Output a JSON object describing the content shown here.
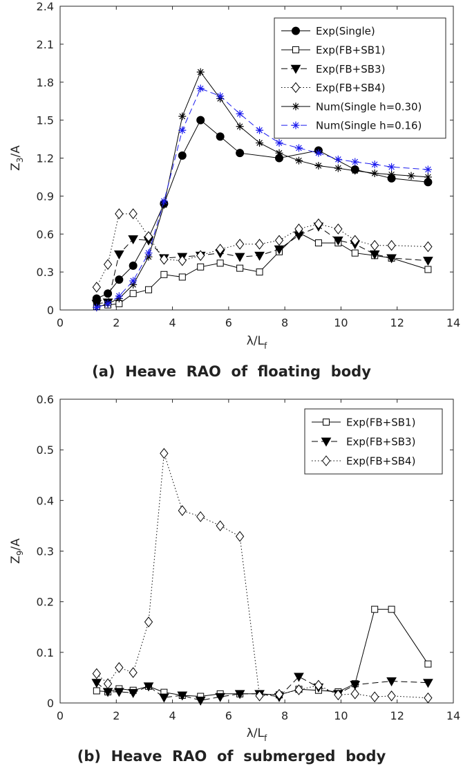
{
  "chart_data": [
    {
      "type": "line",
      "caption": "(a)  Heave  RAO  of  floating  body",
      "xlabel": "λ/L_f",
      "ylabel": "Z_3/A",
      "xlim": [
        0,
        14
      ],
      "ylim": [
        0,
        2.4
      ],
      "xticks": [
        "0",
        "2",
        "4",
        "6",
        "8",
        "10",
        "12",
        "14"
      ],
      "yticks": [
        "0",
        "0.3",
        "0.6",
        "0.9",
        "1.2",
        "1.5",
        "1.8",
        "2.1",
        "2.4"
      ],
      "grid": false,
      "legend_position": "top-right",
      "series": [
        {
          "name": "Exp(Single)",
          "color": "#000000",
          "marker": "filled-circle",
          "dash": "solid",
          "x": [
            1.3,
            1.7,
            2.1,
            2.6,
            3.15,
            3.7,
            4.35,
            5.0,
            5.7,
            6.4,
            7.8,
            9.2,
            10.5,
            11.8,
            13.1
          ],
          "y": [
            0.09,
            0.13,
            0.24,
            0.35,
            0.57,
            0.84,
            1.22,
            1.5,
            1.37,
            1.24,
            1.2,
            1.26,
            1.11,
            1.04,
            1.01
          ]
        },
        {
          "name": "Exp(FB+SB1)",
          "color": "#000000",
          "marker": "open-square",
          "dash": "solid",
          "x": [
            1.3,
            1.7,
            2.1,
            2.6,
            3.15,
            3.7,
            4.35,
            5.0,
            5.7,
            6.4,
            7.1,
            7.8,
            8.5,
            9.2,
            9.9,
            10.5,
            11.2,
            11.8,
            13.1
          ],
          "y": [
            0.03,
            0.04,
            0.05,
            0.13,
            0.16,
            0.28,
            0.26,
            0.34,
            0.37,
            0.33,
            0.3,
            0.46,
            0.61,
            0.53,
            0.53,
            0.45,
            0.43,
            0.41,
            0.32
          ]
        },
        {
          "name": "Exp(FB+SB3)",
          "color": "#000000",
          "marker": "filled-triangle-down",
          "dash": "longdash",
          "x": [
            1.3,
            1.7,
            2.1,
            2.6,
            3.15,
            3.7,
            4.35,
            5.0,
            5.7,
            6.4,
            7.1,
            7.8,
            8.5,
            9.2,
            9.9,
            10.5,
            11.2,
            11.8,
            13.1
          ],
          "y": [
            0.05,
            0.06,
            0.44,
            0.56,
            0.55,
            0.41,
            0.42,
            0.43,
            0.45,
            0.42,
            0.43,
            0.48,
            0.59,
            0.66,
            0.55,
            0.52,
            0.44,
            0.41,
            0.39
          ]
        },
        {
          "name": "Exp(FB+SB4)",
          "color": "#000000",
          "marker": "open-diamond",
          "dash": "dotted",
          "x": [
            1.3,
            1.7,
            2.1,
            2.6,
            3.15,
            3.7,
            4.35,
            5.0,
            5.7,
            6.4,
            7.1,
            7.8,
            8.5,
            9.2,
            9.9,
            10.5,
            11.2,
            11.8,
            13.1
          ],
          "y": [
            0.18,
            0.36,
            0.76,
            0.76,
            0.58,
            0.4,
            0.39,
            0.43,
            0.48,
            0.52,
            0.52,
            0.55,
            0.64,
            0.68,
            0.64,
            0.55,
            0.51,
            0.51,
            0.5
          ]
        },
        {
          "name": "Num(Single h=0.30)",
          "color": "#000000",
          "marker": "asterisk",
          "dash": "solid",
          "x": [
            1.3,
            1.7,
            2.1,
            2.6,
            3.15,
            3.7,
            4.35,
            5.0,
            5.7,
            6.4,
            7.1,
            7.8,
            8.5,
            9.2,
            9.9,
            10.5,
            11.2,
            11.8,
            12.5,
            13.1
          ],
          "y": [
            0.02,
            0.05,
            0.09,
            0.2,
            0.42,
            0.83,
            1.53,
            1.88,
            1.67,
            1.45,
            1.32,
            1.24,
            1.18,
            1.14,
            1.12,
            1.1,
            1.08,
            1.07,
            1.06,
            1.05
          ]
        },
        {
          "name": "Num(Single h=0.16)",
          "color": "#1a1aee",
          "marker": "asterisk",
          "dash": "longdash",
          "x": [
            1.3,
            1.7,
            2.1,
            2.6,
            3.15,
            3.7,
            4.35,
            5.0,
            5.7,
            6.4,
            7.1,
            7.8,
            8.5,
            9.2,
            9.9,
            10.5,
            11.2,
            11.8,
            13.1
          ],
          "y": [
            0.02,
            0.05,
            0.11,
            0.23,
            0.45,
            0.86,
            1.42,
            1.75,
            1.69,
            1.55,
            1.42,
            1.32,
            1.28,
            1.24,
            1.19,
            1.17,
            1.15,
            1.13,
            1.11
          ]
        }
      ]
    },
    {
      "type": "line",
      "caption": "(b)  Heave  RAO  of  submerged  body",
      "xlabel": "λ/L_f",
      "ylabel": "Z_9/A",
      "xlim": [
        0,
        14
      ],
      "ylim": [
        0,
        0.6
      ],
      "xticks": [
        "0",
        "2",
        "4",
        "6",
        "8",
        "10",
        "12",
        "14"
      ],
      "yticks": [
        "0",
        "0.1",
        "0.2",
        "0.3",
        "0.4",
        "0.5",
        "0.6"
      ],
      "grid": false,
      "legend_position": "top-right",
      "series": [
        {
          "name": "Exp(FB+SB1)",
          "color": "#000000",
          "marker": "open-square",
          "dash": "solid",
          "x": [
            1.3,
            1.7,
            2.1,
            2.6,
            3.15,
            3.7,
            4.35,
            5.0,
            5.7,
            6.4,
            7.1,
            7.8,
            8.5,
            9.2,
            9.9,
            10.5,
            11.2,
            11.8,
            13.1
          ],
          "y": [
            0.024,
            0.022,
            0.028,
            0.025,
            0.033,
            0.021,
            0.015,
            0.013,
            0.018,
            0.018,
            0.018,
            0.016,
            0.027,
            0.025,
            0.022,
            0.038,
            0.185,
            0.185,
            0.077
          ]
        },
        {
          "name": "Exp(FB+SB3)",
          "color": "#000000",
          "marker": "filled-triangle-down",
          "dash": "longdash",
          "x": [
            1.3,
            1.7,
            2.1,
            2.6,
            3.15,
            3.7,
            4.35,
            5.0,
            5.7,
            6.4,
            7.1,
            7.8,
            8.5,
            9.2,
            9.9,
            10.5,
            11.8,
            13.1
          ],
          "y": [
            0.04,
            0.022,
            0.022,
            0.02,
            0.033,
            0.011,
            0.015,
            0.005,
            0.012,
            0.018,
            0.018,
            0.012,
            0.052,
            0.031,
            0.018,
            0.036,
            0.043,
            0.04
          ]
        },
        {
          "name": "Exp(FB+SB4)",
          "color": "#000000",
          "marker": "open-diamond",
          "dash": "dotted",
          "x": [
            1.3,
            1.7,
            2.1,
            2.6,
            3.15,
            3.7,
            4.35,
            5.0,
            5.7,
            6.4,
            7.1,
            7.8,
            8.5,
            9.2,
            9.9,
            10.5,
            11.2,
            11.8,
            13.1
          ],
          "y": [
            0.058,
            0.038,
            0.07,
            0.06,
            0.16,
            0.493,
            0.38,
            0.368,
            0.35,
            0.329,
            0.014,
            0.017,
            0.026,
            0.035,
            0.016,
            0.018,
            0.012,
            0.014,
            0.01
          ]
        }
      ]
    }
  ]
}
